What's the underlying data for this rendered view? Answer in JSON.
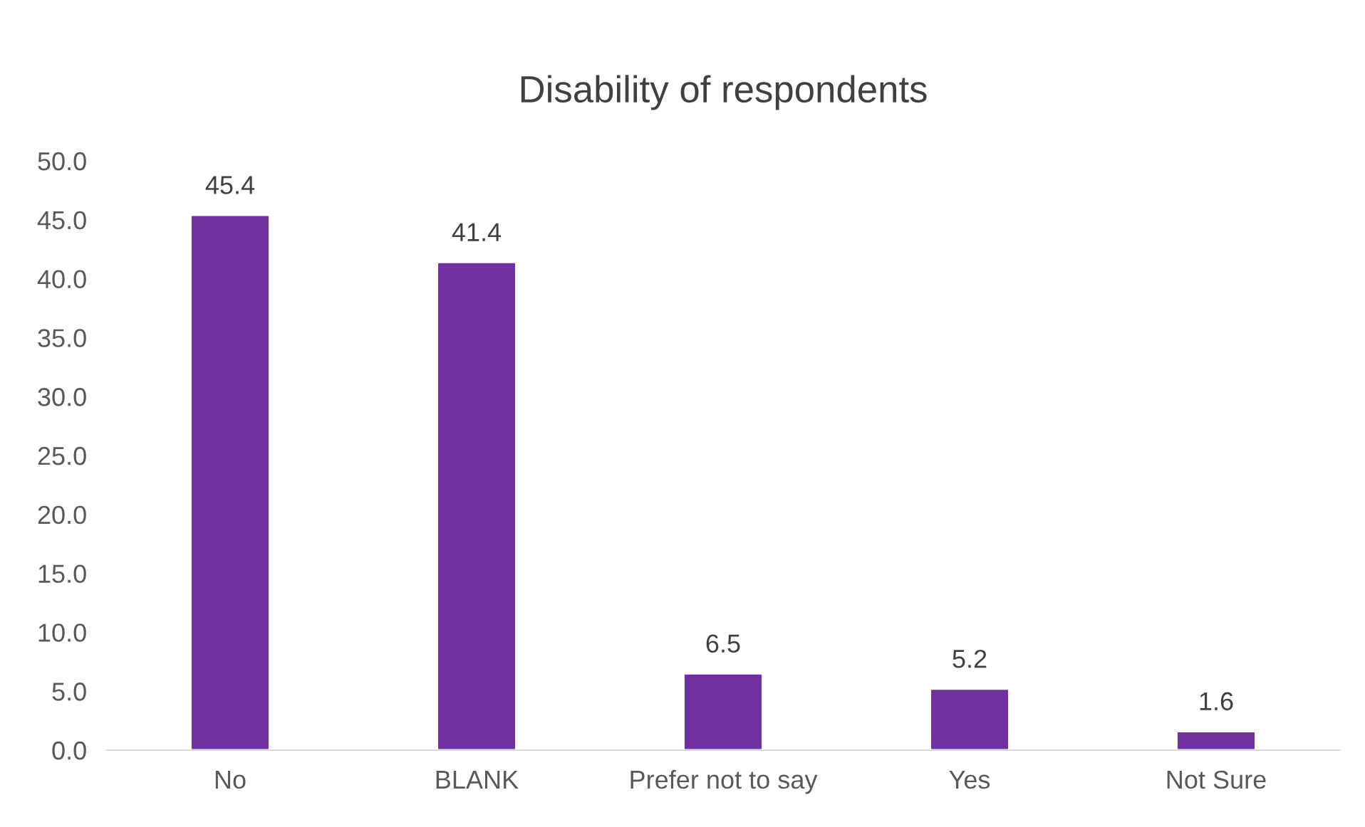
{
  "chart_data": {
    "type": "bar",
    "title": "Disability of respondents",
    "categories": [
      "No",
      "BLANK",
      "Prefer not to say",
      "Yes",
      "Not Sure"
    ],
    "values": [
      45.4,
      41.4,
      6.5,
      5.2,
      1.6
    ],
    "color": "#7030a0",
    "ylim": [
      0,
      50
    ],
    "yticks": [
      {
        "value": 0,
        "label": "0.0"
      },
      {
        "value": 5,
        "label": "5.0"
      },
      {
        "value": 10,
        "label": "10.0"
      },
      {
        "value": 15,
        "label": "15.0"
      },
      {
        "value": 20,
        "label": "20.0"
      },
      {
        "value": 25,
        "label": "25.0"
      },
      {
        "value": 30,
        "label": "30.0"
      },
      {
        "value": 35,
        "label": "35.0"
      },
      {
        "value": 40,
        "label": "40.0"
      },
      {
        "value": 45,
        "label": "45.0"
      },
      {
        "value": 50,
        "label": "50.0"
      }
    ],
    "data_labels": true,
    "grid": false,
    "legend": false
  }
}
